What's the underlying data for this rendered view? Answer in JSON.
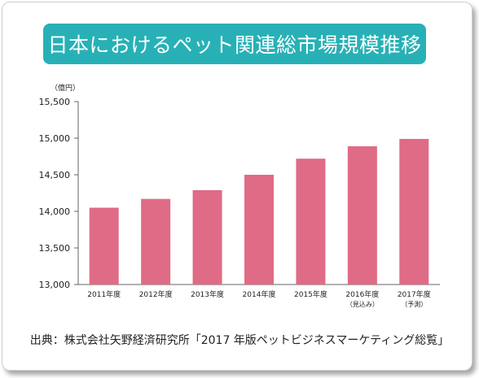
{
  "colors": {
    "title_bg": "#27b1b6",
    "bar": "#e06b86",
    "axis": "#666666",
    "text": "#222222"
  },
  "source_text": "出典：株式会社矢野経済研究所「2017 年版ペットビジネスマーケティング総覧」",
  "chart_data": {
    "type": "bar",
    "title": "日本におけるペット関連総市場規模推移",
    "ylabel": "（億円）",
    "xlabel": "",
    "ylim": [
      13000,
      15500
    ],
    "yticks": [
      13000,
      13500,
      14000,
      14500,
      15000,
      15500
    ],
    "ytick_labels": [
      "13,000",
      "13,500",
      "14,000",
      "14,500",
      "15,000",
      "15,500"
    ],
    "grid": false,
    "categories": [
      "2011年度",
      "2012年度",
      "2013年度",
      "2014年度",
      "2015年度",
      "2016年度",
      "2017年度"
    ],
    "category_notes": [
      "",
      "",
      "",
      "",
      "",
      "（見込み）",
      "（予測）"
    ],
    "values": [
      14050,
      14170,
      14290,
      14500,
      14720,
      14890,
      14990
    ]
  }
}
